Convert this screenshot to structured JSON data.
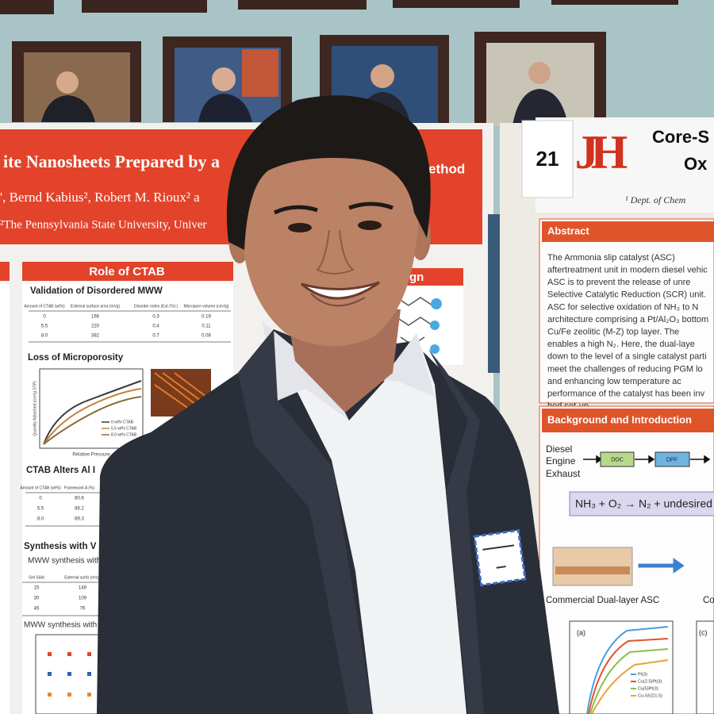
{
  "left_poster": {
    "title": "ite Nanosheets Prepared by a",
    "title_end": "ethod",
    "authors": "', Bernd Kabius², Robert M. Rioux² a",
    "affiliation": "²The Pennsylvania State University, Univer",
    "section_header": "Role of CTAB",
    "section_header_right": "gn",
    "validation": {
      "heading": "Validation of Disordered MWW",
      "columns": [
        "Amount of CTAB (wt%)",
        "External surface area (m²/g)",
        "Disorder index (Ext./Tot.)",
        "Micropore volume (cm³/g)"
      ],
      "rows": [
        [
          "0",
          "166",
          "0.3",
          "0.19"
        ],
        [
          "5.5",
          "220",
          "0.4",
          "0.11"
        ],
        [
          "8.0",
          "382",
          "0.7",
          "0.08"
        ]
      ]
    },
    "microporosity": {
      "heading": "Loss of Microporosity",
      "y_label": "Quantity Adsorbed (cm³/g STP)",
      "x_label": "Relative Pressure",
      "legend": [
        "0 wt% CTAB",
        "5.5 wt% CTAB",
        "8.0 wt% CTAB"
      ]
    },
    "al": {
      "heading": "CTAB Alters Al I",
      "columns": [
        "Amount of CTAB (wt%)",
        "Framework A (%)"
      ],
      "rows": [
        [
          "0",
          "80.6"
        ],
        [
          "5.5",
          "86.2"
        ],
        [
          "8.0",
          "89.3"
        ]
      ]
    },
    "synthesis": {
      "heading": "Synthesis with V",
      "subheading": "MWW synthesis with",
      "columns": [
        "Gel Si/Al",
        "External surfa (m²/g)"
      ],
      "rows": [
        [
          "15",
          "149"
        ],
        [
          "30",
          "109"
        ],
        [
          "45",
          "76"
        ]
      ]
    },
    "synthesis_ctab": "MWW synthesis with CT"
  },
  "right_poster": {
    "poster_number": "21",
    "logo": "JH",
    "title_lines": [
      "Core-S",
      "Ox"
    ],
    "affiliation": "¹ Dept. of Chem",
    "abstract": {
      "heading": "Abstract",
      "lines": [
        "The Ammonia slip catalyst (ASC)",
        "aftertreatment unit in modern diesel vehic",
        "ASC is to prevent the release of unre",
        "Selective Catalytic Reduction (SCR) unit.",
        "ASC for selective oxidation of NH₃ to N",
        "architecture comprising a Pt/Al₂O₃ bottom",
        "Cu/Fe zeolitic (M-Z) top layer. The",
        "enables a high N₂. Here, the dual-laye",
        "down to the level of a single catalyst parti",
        "meet the challenges of reducing PGM lo",
        "and enhancing low temperature ac",
        "performance of the catalyst has been inv",
        "bed set-up."
      ]
    },
    "background": {
      "heading": "Background and Introduction",
      "source": [
        "Diesel",
        "Engine",
        "Exhaust"
      ],
      "units": [
        "DOC",
        "DPF"
      ],
      "reaction": "NH₃ + O₂ → N₂ + undesired",
      "caption": "Commercial Dual-layer ASC",
      "caption_right": "Co"
    },
    "chart_panels": [
      "(a)",
      "(c)"
    ],
    "legend": [
      "Pt(3)",
      "Cu(2.5)Pt(3)",
      "Cu(5)Pt(3)",
      "Cu-SSZ(1.5)"
    ]
  }
}
